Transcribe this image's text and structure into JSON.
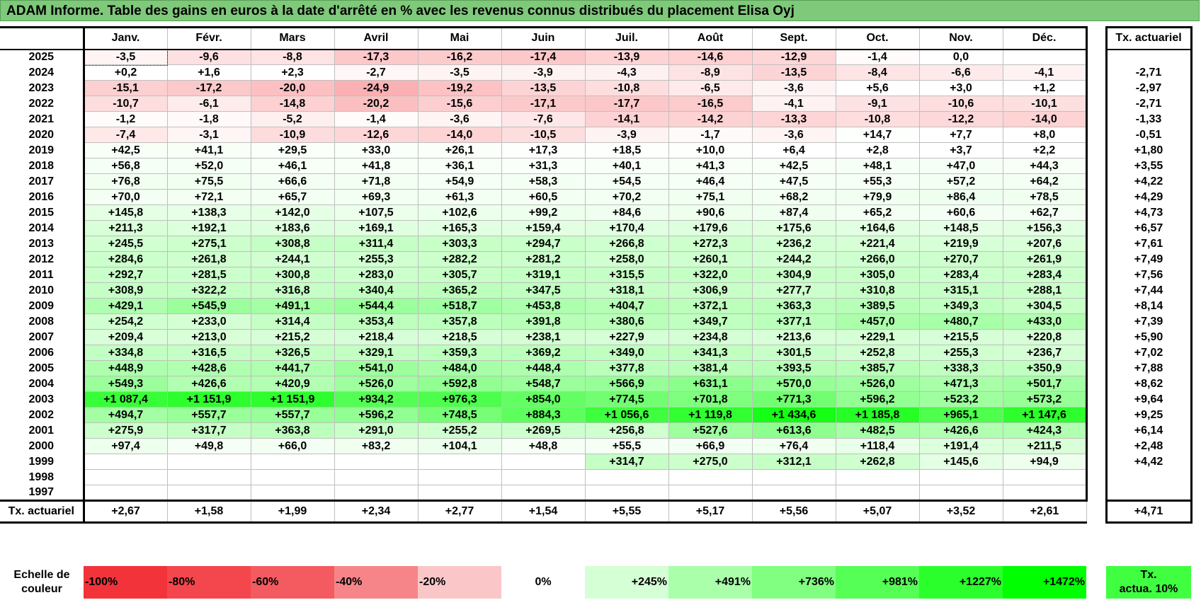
{
  "title": "ADAM Informe. Table des gains en euros à la date d'arrêté en % avec les revenus connus distribués du placement Elisa Oyj",
  "months": [
    "Janv.",
    "Févr.",
    "Mars",
    "Avril",
    "Mai",
    "Juin",
    "Juil.",
    "Août",
    "Sept.",
    "Oct.",
    "Nov.",
    "Déc."
  ],
  "tx_header": "Tx. actuariel",
  "rows": [
    {
      "year": "2025",
      "values": [
        "-3,5",
        "-9,6",
        "-8,8",
        "-17,3",
        "-16,2",
        "-17,4",
        "-13,9",
        "-14,6",
        "-12,9",
        "-1,4",
        "0,0",
        ""
      ],
      "tx": ""
    },
    {
      "year": "2024",
      "values": [
        "+0,2",
        "+1,6",
        "+2,3",
        "-2,7",
        "-3,5",
        "-3,9",
        "-4,3",
        "-8,9",
        "-13,5",
        "-8,4",
        "-6,6",
        "-4,1"
      ],
      "tx": "-2,71"
    },
    {
      "year": "2023",
      "values": [
        "-15,1",
        "-17,2",
        "-20,0",
        "-24,9",
        "-19,2",
        "-13,5",
        "-10,8",
        "-6,5",
        "-3,6",
        "+5,6",
        "+3,0",
        "+1,2"
      ],
      "tx": "-2,97"
    },
    {
      "year": "2022",
      "values": [
        "-10,7",
        "-6,1",
        "-14,8",
        "-20,2",
        "-15,6",
        "-17,1",
        "-17,7",
        "-16,5",
        "-4,1",
        "-9,1",
        "-10,6",
        "-10,1"
      ],
      "tx": "-2,71"
    },
    {
      "year": "2021",
      "values": [
        "-1,2",
        "-1,8",
        "-5,2",
        "-1,4",
        "-3,6",
        "-7,6",
        "-14,1",
        "-14,2",
        "-13,3",
        "-10,8",
        "-12,2",
        "-14,0"
      ],
      "tx": "-1,33"
    },
    {
      "year": "2020",
      "values": [
        "-7,4",
        "-3,1",
        "-10,9",
        "-12,6",
        "-14,0",
        "-10,5",
        "-3,9",
        "-1,7",
        "-3,6",
        "+14,7",
        "+7,7",
        "+8,0"
      ],
      "tx": "-0,51"
    },
    {
      "year": "2019",
      "values": [
        "+42,5",
        "+41,1",
        "+29,5",
        "+33,0",
        "+26,1",
        "+17,3",
        "+18,5",
        "+10,0",
        "+6,4",
        "+2,8",
        "+3,7",
        "+2,2"
      ],
      "tx": "+1,80"
    },
    {
      "year": "2018",
      "values": [
        "+56,8",
        "+52,0",
        "+46,1",
        "+41,8",
        "+36,1",
        "+31,3",
        "+40,1",
        "+41,3",
        "+42,5",
        "+48,1",
        "+47,0",
        "+44,3"
      ],
      "tx": "+3,55"
    },
    {
      "year": "2017",
      "values": [
        "+76,8",
        "+75,5",
        "+66,6",
        "+71,8",
        "+54,9",
        "+58,3",
        "+54,5",
        "+46,4",
        "+47,5",
        "+55,3",
        "+57,2",
        "+64,2"
      ],
      "tx": "+4,22"
    },
    {
      "year": "2016",
      "values": [
        "+70,0",
        "+72,1",
        "+65,7",
        "+69,3",
        "+61,3",
        "+60,5",
        "+70,2",
        "+75,1",
        "+68,2",
        "+79,9",
        "+86,4",
        "+78,5"
      ],
      "tx": "+4,29"
    },
    {
      "year": "2015",
      "values": [
        "+145,8",
        "+138,3",
        "+142,0",
        "+107,5",
        "+102,6",
        "+99,2",
        "+84,6",
        "+90,6",
        "+87,4",
        "+65,2",
        "+60,6",
        "+62,7"
      ],
      "tx": "+4,73"
    },
    {
      "year": "2014",
      "values": [
        "+211,3",
        "+192,1",
        "+183,6",
        "+169,1",
        "+165,3",
        "+159,4",
        "+170,4",
        "+179,6",
        "+175,6",
        "+164,6",
        "+148,5",
        "+156,3"
      ],
      "tx": "+6,57"
    },
    {
      "year": "2013",
      "values": [
        "+245,5",
        "+275,1",
        "+308,8",
        "+311,4",
        "+303,3",
        "+294,7",
        "+266,8",
        "+272,3",
        "+236,2",
        "+221,4",
        "+219,9",
        "+207,6"
      ],
      "tx": "+7,61"
    },
    {
      "year": "2012",
      "values": [
        "+284,6",
        "+261,8",
        "+244,1",
        "+255,3",
        "+282,2",
        "+281,2",
        "+258,0",
        "+260,1",
        "+244,2",
        "+266,0",
        "+270,7",
        "+261,9"
      ],
      "tx": "+7,49"
    },
    {
      "year": "2011",
      "values": [
        "+292,7",
        "+281,5",
        "+300,8",
        "+283,0",
        "+305,7",
        "+319,1",
        "+315,5",
        "+322,0",
        "+304,9",
        "+305,0",
        "+283,4",
        "+283,4"
      ],
      "tx": "+7,56"
    },
    {
      "year": "2010",
      "values": [
        "+308,9",
        "+322,2",
        "+316,8",
        "+340,4",
        "+365,2",
        "+347,5",
        "+318,1",
        "+306,9",
        "+277,7",
        "+310,8",
        "+315,1",
        "+288,1"
      ],
      "tx": "+7,44"
    },
    {
      "year": "2009",
      "values": [
        "+429,1",
        "+545,9",
        "+491,1",
        "+544,4",
        "+518,7",
        "+453,8",
        "+404,7",
        "+372,1",
        "+363,3",
        "+389,5",
        "+349,3",
        "+304,5"
      ],
      "tx": "+8,14"
    },
    {
      "year": "2008",
      "values": [
        "+254,2",
        "+233,0",
        "+314,4",
        "+353,4",
        "+357,8",
        "+391,8",
        "+380,6",
        "+349,7",
        "+377,1",
        "+457,0",
        "+480,7",
        "+433,0"
      ],
      "tx": "+7,39"
    },
    {
      "year": "2007",
      "values": [
        "+209,4",
        "+213,0",
        "+215,2",
        "+218,4",
        "+218,5",
        "+238,1",
        "+227,9",
        "+234,8",
        "+213,6",
        "+229,1",
        "+215,5",
        "+220,8"
      ],
      "tx": "+5,90"
    },
    {
      "year": "2006",
      "values": [
        "+334,8",
        "+316,5",
        "+326,5",
        "+329,1",
        "+359,3",
        "+369,2",
        "+349,0",
        "+341,3",
        "+301,5",
        "+252,8",
        "+255,3",
        "+236,7"
      ],
      "tx": "+7,02"
    },
    {
      "year": "2005",
      "values": [
        "+448,9",
        "+428,6",
        "+441,7",
        "+541,0",
        "+484,0",
        "+448,4",
        "+377,8",
        "+381,4",
        "+393,5",
        "+385,7",
        "+338,3",
        "+350,9"
      ],
      "tx": "+7,88"
    },
    {
      "year": "2004",
      "values": [
        "+549,3",
        "+426,6",
        "+420,9",
        "+526,0",
        "+592,8",
        "+548,7",
        "+566,9",
        "+631,1",
        "+570,0",
        "+526,0",
        "+471,3",
        "+501,7"
      ],
      "tx": "+8,62"
    },
    {
      "year": "2003",
      "values": [
        "+1 087,4",
        "+1 151,9",
        "+1 151,9",
        "+934,2",
        "+976,3",
        "+854,0",
        "+774,5",
        "+701,8",
        "+771,3",
        "+596,2",
        "+523,2",
        "+573,2"
      ],
      "tx": "+9,64"
    },
    {
      "year": "2002",
      "values": [
        "+494,7",
        "+557,7",
        "+557,7",
        "+596,2",
        "+748,5",
        "+884,3",
        "+1 056,6",
        "+1 119,8",
        "+1 434,6",
        "+1 185,8",
        "+965,1",
        "+1 147,6"
      ],
      "tx": "+9,25"
    },
    {
      "year": "2001",
      "values": [
        "+275,9",
        "+317,7",
        "+363,8",
        "+291,0",
        "+255,2",
        "+269,5",
        "+256,8",
        "+527,6",
        "+613,6",
        "+482,5",
        "+426,6",
        "+424,3"
      ],
      "tx": "+6,14"
    },
    {
      "year": "2000",
      "values": [
        "+97,4",
        "+49,8",
        "+66,0",
        "+83,2",
        "+104,1",
        "+48,8",
        "+55,5",
        "+66,9",
        "+76,4",
        "+118,4",
        "+191,4",
        "+211,5"
      ],
      "tx": "+2,48"
    },
    {
      "year": "1999",
      "values": [
        "",
        "",
        "",
        "",
        "",
        "",
        "+314,7",
        "+275,0",
        "+312,1",
        "+262,8",
        "+145,6",
        "+94,9"
      ],
      "tx": "+4,42"
    },
    {
      "year": "1998",
      "values": [
        "",
        "",
        "",
        "",
        "",
        "",
        "",
        "",
        "",
        "",
        "",
        ""
      ],
      "tx": ""
    },
    {
      "year": "1997",
      "values": [
        "",
        "",
        "",
        "",
        "",
        "",
        "",
        "",
        "",
        "",
        "",
        ""
      ],
      "tx": ""
    }
  ],
  "footer": {
    "label": "Tx. actuariel",
    "values": [
      "+2,67",
      "+1,58",
      "+1,99",
      "+2,34",
      "+2,77",
      "+1,54",
      "+5,55",
      "+5,17",
      "+5,56",
      "+5,07",
      "+3,52",
      "+2,61"
    ],
    "total": "+4,71"
  },
  "scale": {
    "label_line1": "Echelle de",
    "label_line2": "couleur",
    "items": [
      {
        "label": "-100%",
        "color": "#f2333a",
        "align": "left"
      },
      {
        "label": "-80%",
        "color": "#f3474d",
        "align": "left"
      },
      {
        "label": "-60%",
        "color": "#f45b60",
        "align": "left"
      },
      {
        "label": "-40%",
        "color": "#f68589",
        "align": "left"
      },
      {
        "label": "-20%",
        "color": "#fbc6c8",
        "align": "left"
      },
      {
        "label": "0%",
        "color": "#ffffff",
        "align": "center"
      },
      {
        "label": "+245%",
        "color": "#d5ffd5",
        "align": "right"
      },
      {
        "label": "+491%",
        "color": "#aaffaa",
        "align": "right"
      },
      {
        "label": "+736%",
        "color": "#80ff80",
        "align": "right"
      },
      {
        "label": "+981%",
        "color": "#55ff55",
        "align": "right"
      },
      {
        "label": "+1227%",
        "color": "#2bff2b",
        "align": "right"
      },
      {
        "label": "+1472%",
        "color": "#00ff00",
        "align": "right"
      }
    ],
    "tx_line1": "Tx.",
    "tx_line2": "actua. 10%"
  }
}
